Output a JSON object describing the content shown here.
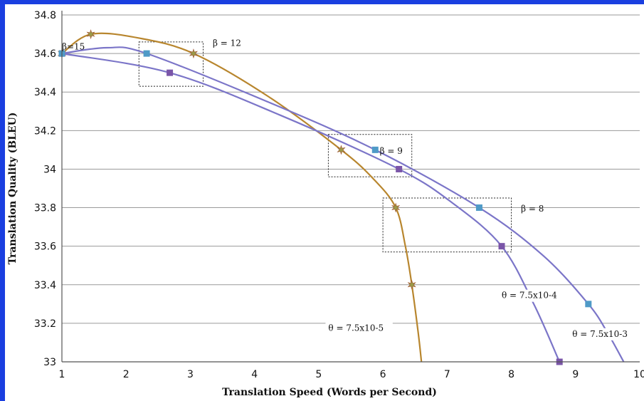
{
  "chart_data": {
    "type": "line",
    "title": "",
    "xlabel": "Translation Speed (Words per Second)",
    "ylabel": "Translation Quality (BLEU)",
    "xlim": [
      1,
      10
    ],
    "ylim": [
      33,
      34.8
    ],
    "x_ticks": [
      "1",
      "2",
      "3",
      "4",
      "5",
      "6",
      "7",
      "8",
      "9",
      "10"
    ],
    "y_ticks": [
      "33",
      "33.2",
      "33.4",
      "33.6",
      "33.8",
      "34",
      "34.2",
      "34.4",
      "34.6",
      "34.8"
    ],
    "grid": "horizontal",
    "legend": "none",
    "series": [
      {
        "key": "theta-7.5x10-5",
        "name": "θ = 7.5x10-5",
        "color": "#b8862e",
        "marker": "star",
        "marker_color": "#9a9a48",
        "points": [
          [
            1,
            34.6
          ],
          [
            1.45,
            34.7
          ],
          [
            3.05,
            34.6
          ],
          [
            5.35,
            34.1
          ],
          [
            6.2,
            33.8
          ],
          [
            6.45,
            33.4
          ]
        ],
        "curve": [
          [
            1,
            34.6
          ],
          [
            1.45,
            34.7
          ],
          [
            2.2,
            34.68
          ],
          [
            3.05,
            34.6
          ],
          [
            4.2,
            34.38
          ],
          [
            5.35,
            34.1
          ],
          [
            5.85,
            33.95
          ],
          [
            6.2,
            33.8
          ],
          [
            6.35,
            33.6
          ],
          [
            6.45,
            33.4
          ],
          [
            6.55,
            33.15
          ],
          [
            6.6,
            33
          ]
        ]
      },
      {
        "key": "theta-7.5x10-4",
        "name": "θ = 7.5x10-4",
        "color": "#7b75c8",
        "marker": "square",
        "marker_color": "#7a55a8",
        "points": [
          [
            1,
            34.6
          ],
          [
            2.68,
            34.5
          ],
          [
            6.25,
            34.0
          ],
          [
            7.85,
            33.6
          ],
          [
            8.75,
            33.0
          ]
        ],
        "curve": [
          [
            1,
            34.6
          ],
          [
            2.68,
            34.5
          ],
          [
            4.4,
            34.28
          ],
          [
            6.25,
            34.0
          ],
          [
            7.1,
            33.82
          ],
          [
            7.85,
            33.6
          ],
          [
            8.35,
            33.3
          ],
          [
            8.75,
            33.0
          ]
        ]
      },
      {
        "key": "theta-7.5x10-3",
        "name": "θ = 7.5x10-3",
        "color": "#7b75c8",
        "marker": "square",
        "marker_color": "#4f9ac7",
        "points": [
          [
            1,
            34.6
          ],
          [
            2.32,
            34.6
          ],
          [
            5.88,
            34.1
          ],
          [
            7.5,
            33.8
          ],
          [
            9.2,
            33.3
          ]
        ],
        "curve": [
          [
            1,
            34.6
          ],
          [
            1.7,
            34.63
          ],
          [
            2.32,
            34.6
          ],
          [
            4.2,
            34.35
          ],
          [
            5.88,
            34.1
          ],
          [
            7.5,
            33.8
          ],
          [
            8.5,
            33.55
          ],
          [
            9.2,
            33.3
          ],
          [
            9.5,
            33.15
          ],
          [
            9.75,
            33.0
          ]
        ]
      }
    ],
    "annotations": [
      {
        "key": "beta-15",
        "text": "β=15",
        "x": 1.0,
        "y": 34.62
      },
      {
        "key": "beta-12",
        "text": "β = 12",
        "x": 3.35,
        "y": 34.64
      },
      {
        "key": "beta-9",
        "text": "β = 9",
        "x": 5.95,
        "y": 34.08
      },
      {
        "key": "beta-8",
        "text": "β = 8",
        "x": 8.15,
        "y": 33.78
      },
      {
        "key": "theta-5",
        "text": "θ = 7.5x10-5",
        "x": 5.15,
        "y": 33.16
      },
      {
        "key": "theta-4",
        "text": "θ = 7.5x10-4",
        "x": 7.85,
        "y": 33.33
      },
      {
        "key": "theta-3",
        "text": "θ = 7.5x10-3",
        "x": 8.95,
        "y": 33.13
      }
    ],
    "boxes": [
      {
        "key": "box-beta-12",
        "x": [
          2.2,
          3.2
        ],
        "y": [
          34.43,
          34.66
        ]
      },
      {
        "key": "box-beta-9",
        "x": [
          5.15,
          6.45
        ],
        "y": [
          33.96,
          34.18
        ]
      },
      {
        "key": "box-beta-8",
        "x": [
          6.0,
          8.0
        ],
        "y": [
          33.57,
          33.85
        ]
      }
    ]
  }
}
